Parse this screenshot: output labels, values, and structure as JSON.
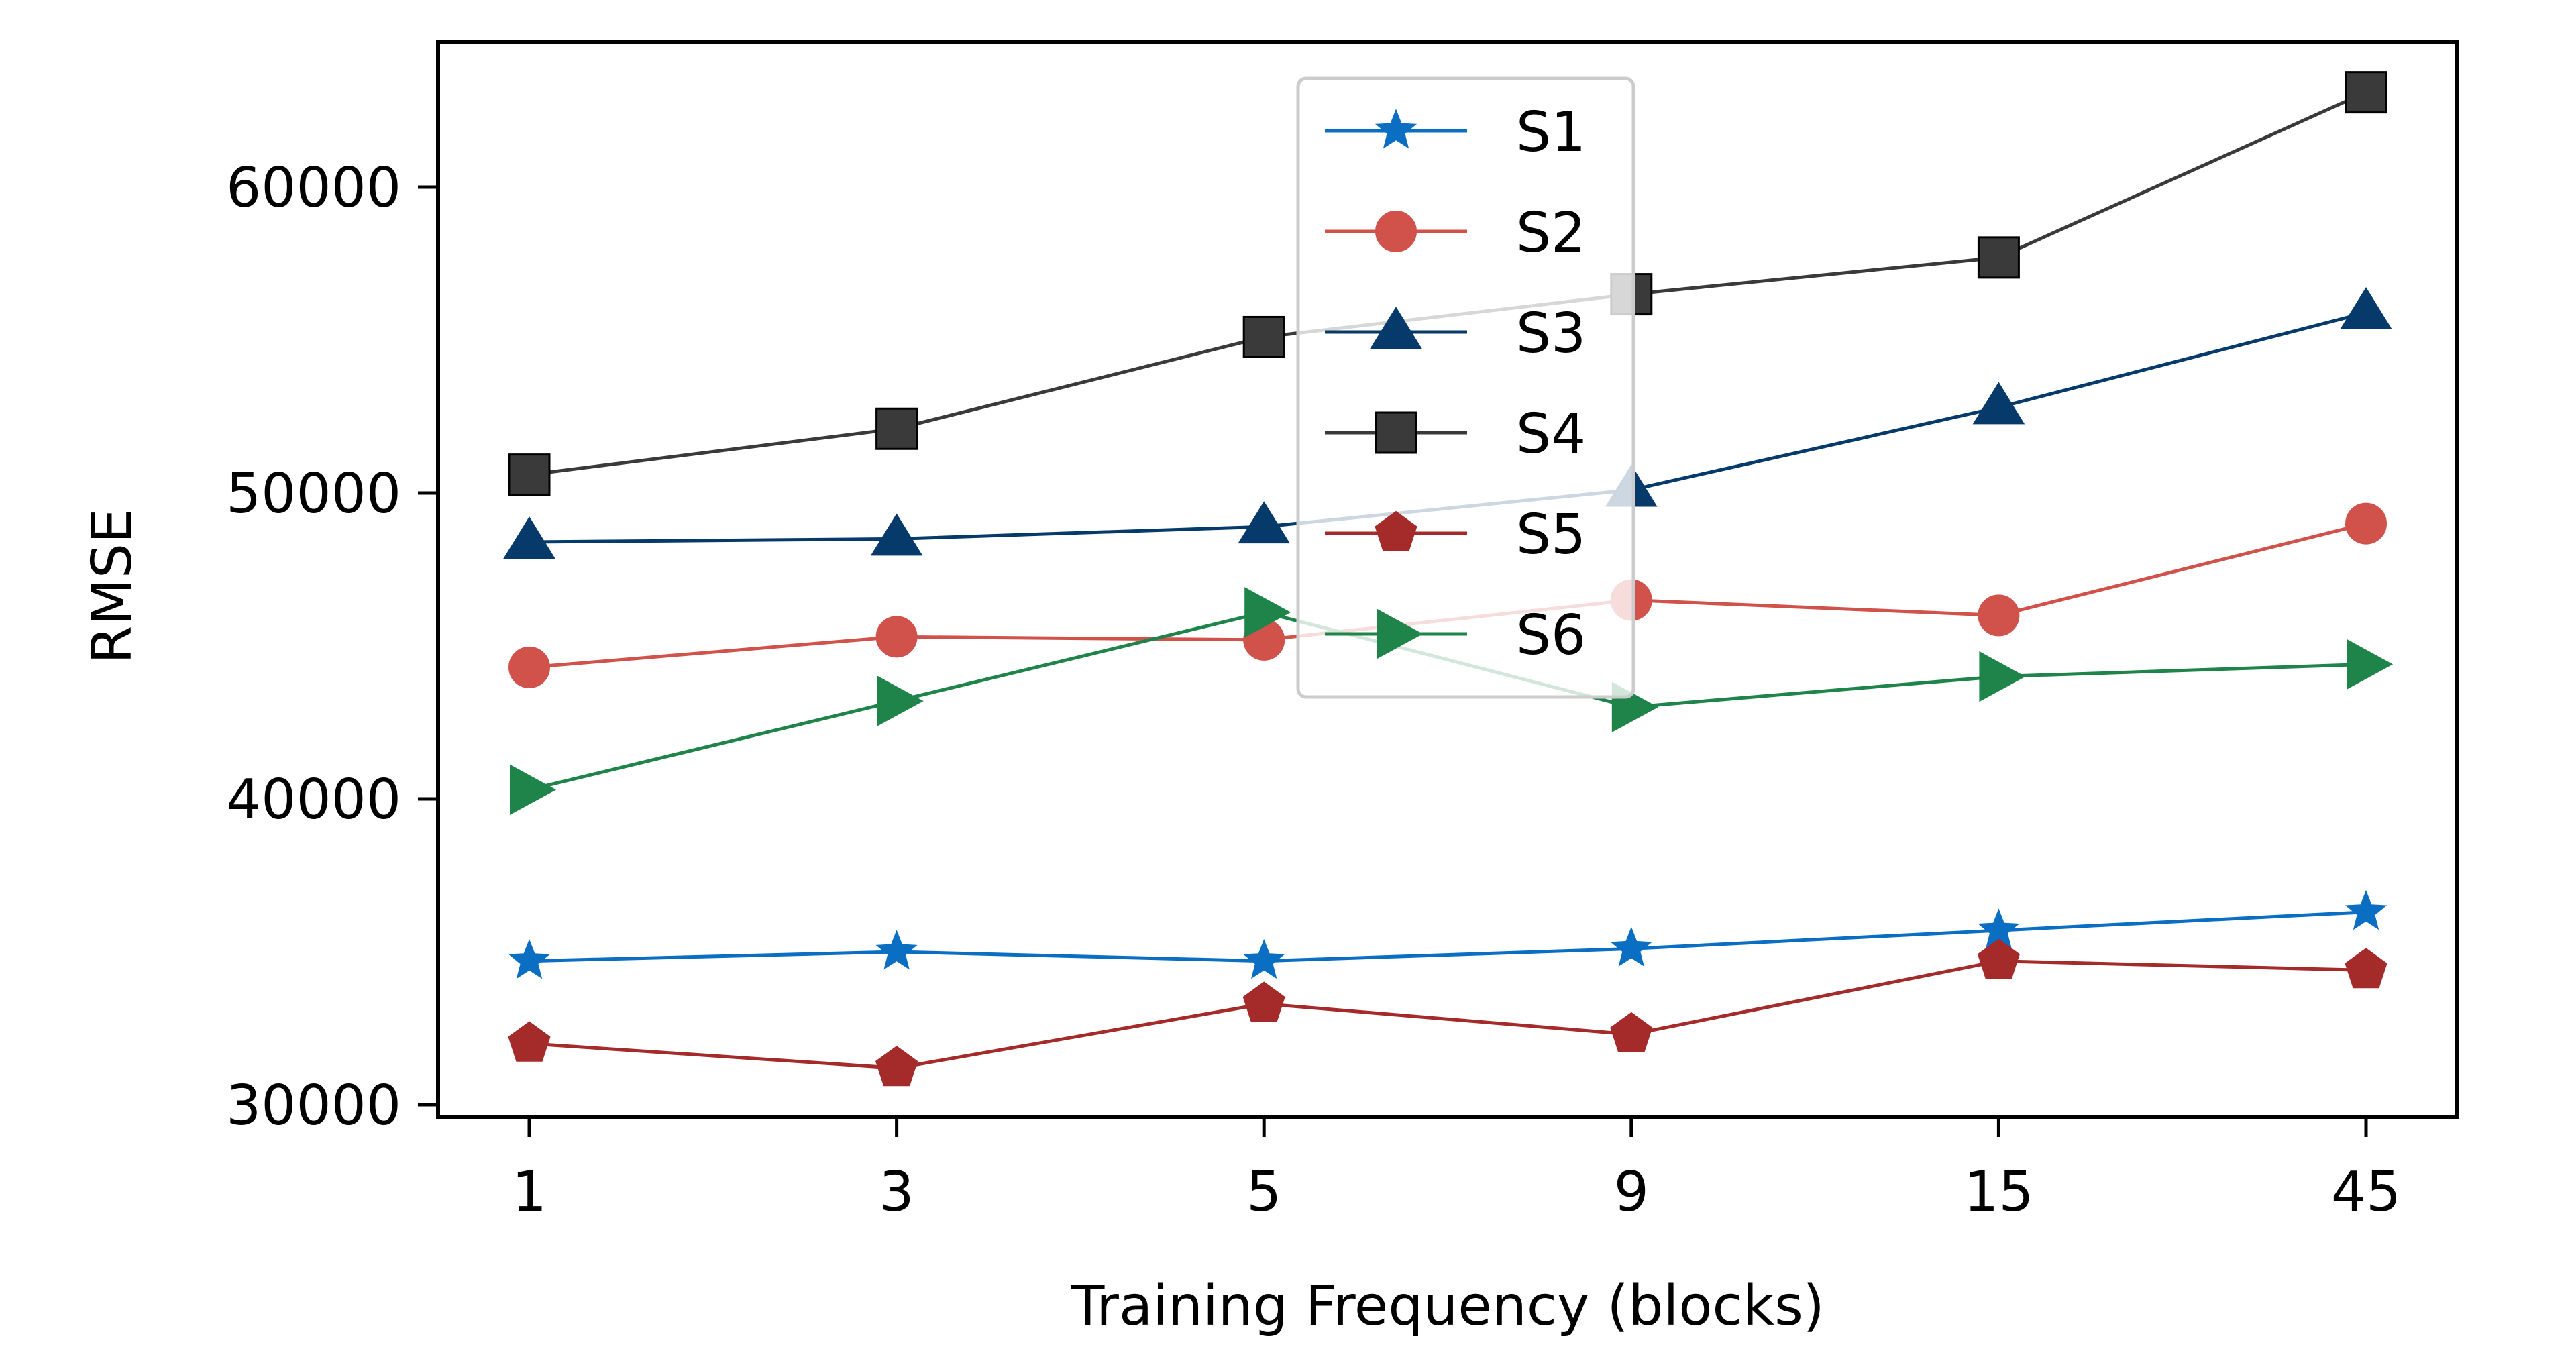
{
  "chart_data": {
    "type": "line",
    "title": "",
    "xlabel": "Training Frequency (blocks)",
    "ylabel": "RMSE",
    "categories": [
      "1",
      "3",
      "5",
      "9",
      "15",
      "45"
    ],
    "x_scale": "categorical",
    "ylim": [
      29600,
      64700
    ],
    "yticks": [
      30000,
      40000,
      50000,
      60000
    ],
    "ytick_labels": [
      "30000",
      "40000",
      "50000",
      "60000"
    ],
    "grid": false,
    "legend_position": "top-center",
    "series": [
      {
        "name": "S1",
        "color": "#0a6fc2",
        "marker": "star",
        "values": [
          34700,
          35000,
          34700,
          35100,
          35700,
          36300
        ]
      },
      {
        "name": "S2",
        "color": "#d1524a",
        "marker": "circle",
        "values": [
          44300,
          45300,
          45200,
          46500,
          46000,
          49000
        ]
      },
      {
        "name": "S3",
        "color": "#053a6b",
        "marker": "triangle-up",
        "values": [
          48400,
          48500,
          48900,
          50100,
          52800,
          55900
        ]
      },
      {
        "name": "S4",
        "color": "#3a3a3a",
        "marker": "square",
        "values": [
          50600,
          52100,
          55100,
          56500,
          57700,
          63100
        ]
      },
      {
        "name": "S5",
        "color": "#a52a2a",
        "marker": "pentagon",
        "values": [
          32000,
          31200,
          33300,
          32300,
          34700,
          34400
        ]
      },
      {
        "name": "S6",
        "color": "#1e8449",
        "marker": "triangle-right",
        "values": [
          40300,
          43200,
          46100,
          43000,
          44000,
          44400
        ]
      }
    ]
  }
}
